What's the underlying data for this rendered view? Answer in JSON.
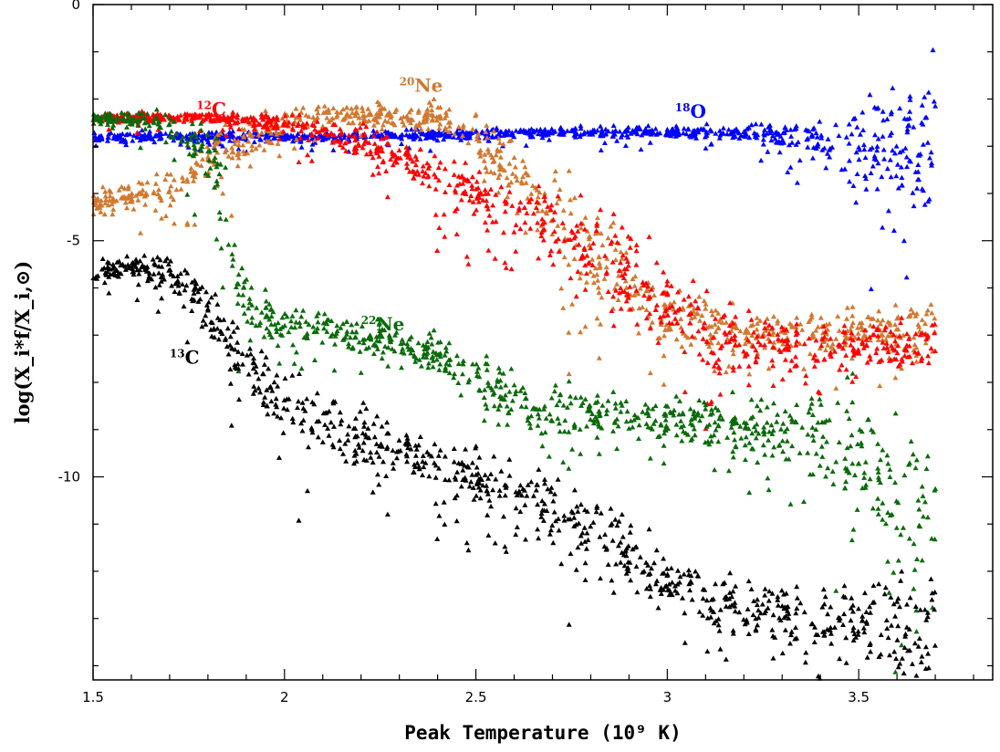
{
  "chart_data": {
    "type": "scatter",
    "title": "",
    "xlabel": "Peak Temperature (10⁹ K)",
    "ylabel": "log(X_i*f/X_i,⊙)",
    "xlim": [
      1.5,
      3.85
    ],
    "ylim": [
      -14.3,
      0
    ],
    "x_ticks": [
      {
        "value": 1.5,
        "label": "1.5"
      },
      {
        "value": 2.0,
        "label": "2"
      },
      {
        "value": 2.5,
        "label": "2.5"
      },
      {
        "value": 3.0,
        "label": "3"
      },
      {
        "value": 3.5,
        "label": "3.5"
      }
    ],
    "y_ticks": [
      {
        "value": 0,
        "label": "0"
      },
      {
        "value": -5,
        "label": "-5"
      },
      {
        "value": -10,
        "label": "-10"
      }
    ],
    "grid": false,
    "legend": "none",
    "marker": "triangle",
    "series": [
      {
        "name": "18O",
        "mass": "18",
        "element": "O",
        "color": "#0000ff",
        "label_pos": [
          3.02,
          -2.4
        ],
        "x": [
          1.5,
          1.8,
          2.1,
          2.4,
          2.7,
          3.0,
          3.2,
          3.4,
          3.6,
          3.7
        ],
        "y": [
          -2.8,
          -2.8,
          -2.8,
          -2.75,
          -2.7,
          -2.7,
          -2.7,
          -2.8,
          -3.0,
          -3.2
        ],
        "spread": [
          0.05,
          0.05,
          0.05,
          0.05,
          0.05,
          0.06,
          0.08,
          0.2,
          0.6,
          1.0
        ]
      },
      {
        "name": "20Ne",
        "mass": "20",
        "element": "Ne",
        "color": "#d2782f",
        "label_pos": [
          2.3,
          -1.85
        ],
        "x": [
          1.5,
          1.7,
          1.85,
          2.0,
          2.2,
          2.4,
          2.5,
          2.6,
          2.8,
          3.0,
          3.2,
          3.5,
          3.7
        ],
        "y": [
          -4.2,
          -3.9,
          -3.0,
          -2.5,
          -2.3,
          -2.4,
          -2.8,
          -3.6,
          -5.2,
          -6.6,
          -6.9,
          -6.9,
          -6.9
        ],
        "spread": [
          0.1,
          0.2,
          0.3,
          0.15,
          0.1,
          0.15,
          0.2,
          0.3,
          0.5,
          0.4,
          0.2,
          0.2,
          0.25
        ]
      },
      {
        "name": "12C",
        "mass": "12",
        "element": "C",
        "color": "#ff0000",
        "label_pos": [
          1.77,
          -2.35
        ],
        "x": [
          1.5,
          1.8,
          2.0,
          2.2,
          2.4,
          2.6,
          2.8,
          3.0,
          3.1,
          3.3,
          3.5,
          3.7
        ],
        "y": [
          -2.4,
          -2.4,
          -2.5,
          -2.9,
          -3.6,
          -4.3,
          -5.1,
          -6.3,
          -7.0,
          -7.2,
          -7.2,
          -7.3
        ],
        "spread": [
          0.05,
          0.05,
          0.1,
          0.15,
          0.25,
          0.3,
          0.4,
          0.5,
          0.4,
          0.25,
          0.2,
          0.3
        ]
      },
      {
        "name": "22Ne",
        "mass": "22",
        "element": "Ne",
        "color": "#0b6b0b",
        "label_pos": [
          2.2,
          -6.9
        ],
        "x": [
          1.5,
          1.7,
          1.8,
          1.85,
          1.9,
          2.0,
          2.3,
          2.5,
          2.65,
          2.8,
          3.0,
          3.2,
          3.4,
          3.5,
          3.6,
          3.7
        ],
        "y": [
          -2.4,
          -2.5,
          -3.2,
          -4.5,
          -6.3,
          -6.8,
          -7.1,
          -7.8,
          -8.7,
          -8.6,
          -8.8,
          -8.9,
          -9.0,
          -9.5,
          -10.6,
          -11.2
        ],
        "spread": [
          0.05,
          0.15,
          0.4,
          0.6,
          0.3,
          0.2,
          0.15,
          0.25,
          0.3,
          0.2,
          0.25,
          0.3,
          0.4,
          0.7,
          0.8,
          0.9
        ]
      },
      {
        "name": "13C",
        "mass": "13",
        "element": "C",
        "color": "#000000",
        "label_pos": [
          1.7,
          -7.6
        ],
        "x": [
          1.5,
          1.6,
          1.7,
          1.8,
          1.9,
          2.0,
          2.2,
          2.4,
          2.6,
          2.8,
          3.0,
          3.2,
          3.4,
          3.6,
          3.7
        ],
        "y": [
          -5.7,
          -5.5,
          -5.7,
          -6.5,
          -7.6,
          -8.4,
          -9.2,
          -9.7,
          -10.3,
          -11.0,
          -12.2,
          -12.8,
          -12.9,
          -13.2,
          -13.5
        ],
        "spread": [
          0.1,
          0.1,
          0.2,
          0.3,
          0.35,
          0.35,
          0.3,
          0.25,
          0.3,
          0.35,
          0.35,
          0.3,
          0.3,
          0.5,
          0.6
        ]
      }
    ]
  }
}
